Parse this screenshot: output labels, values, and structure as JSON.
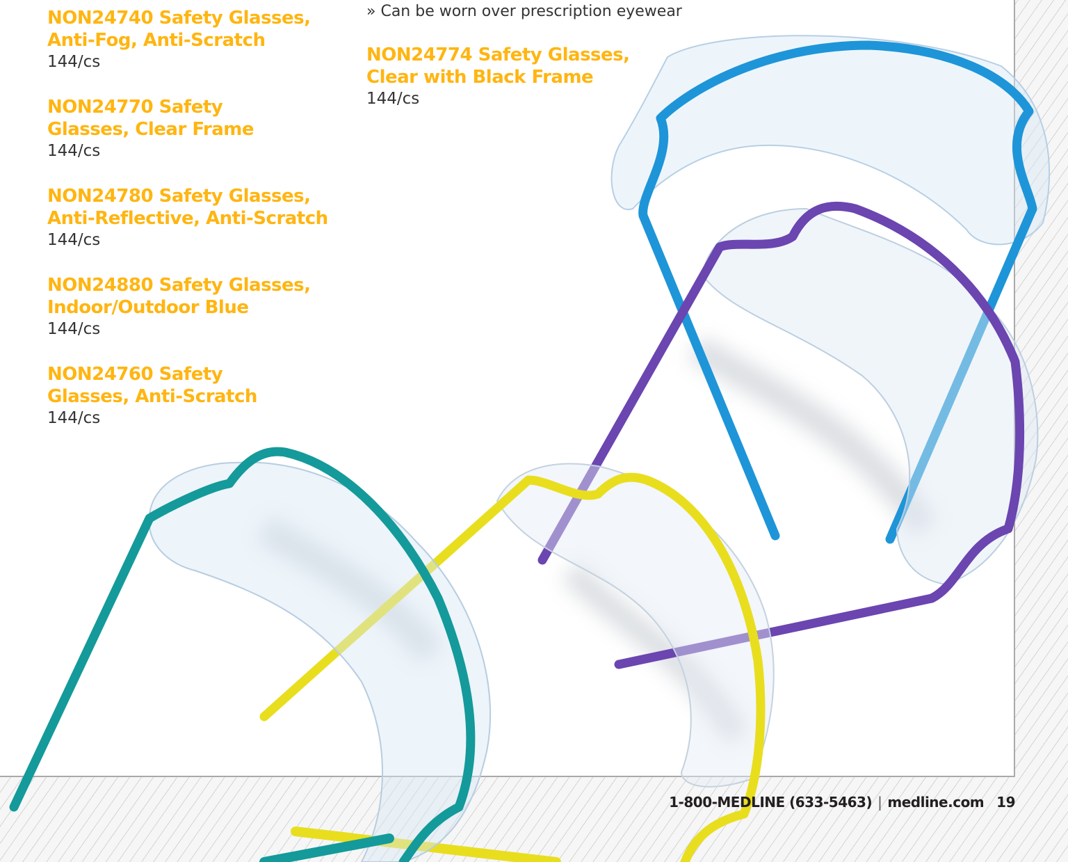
{
  "bullet": "» Can be worn over prescription eyewear",
  "products": [
    {
      "title_line1": "NON24740 Safety Glasses,",
      "title_line2": "Anti-Fog, Anti-Scratch",
      "qty": "144/cs"
    },
    {
      "title_line1": "NON24770 Safety",
      "title_line2": "Glasses, Clear Frame",
      "qty": "144/cs"
    },
    {
      "title_line1": "NON24780 Safety Glasses,",
      "title_line2": "Anti-Reflective, Anti-Scratch",
      "qty": "144/cs"
    },
    {
      "title_line1": "NON24880 Safety Glasses,",
      "title_line2": "Indoor/Outdoor Blue",
      "qty": "144/cs"
    },
    {
      "title_line1": "NON24760 Safety",
      "title_line2": "Glasses, Anti-Scratch",
      "qty": "144/cs"
    },
    {
      "title_line1": "NON24774 Safety Glasses,",
      "title_line2": "Clear with Black Frame",
      "qty": "144/cs"
    }
  ],
  "footer": {
    "phone": "1-800-MEDLINE (633-5463)",
    "separator": "|",
    "website": "medline.com",
    "page_number": "19"
  },
  "colors": {
    "title_accent": "#ffb511",
    "frame_blue": "#1e95d8",
    "frame_purple": "#6b45b0",
    "frame_teal": "#149a9a",
    "frame_yellow": "#e8de1e"
  }
}
